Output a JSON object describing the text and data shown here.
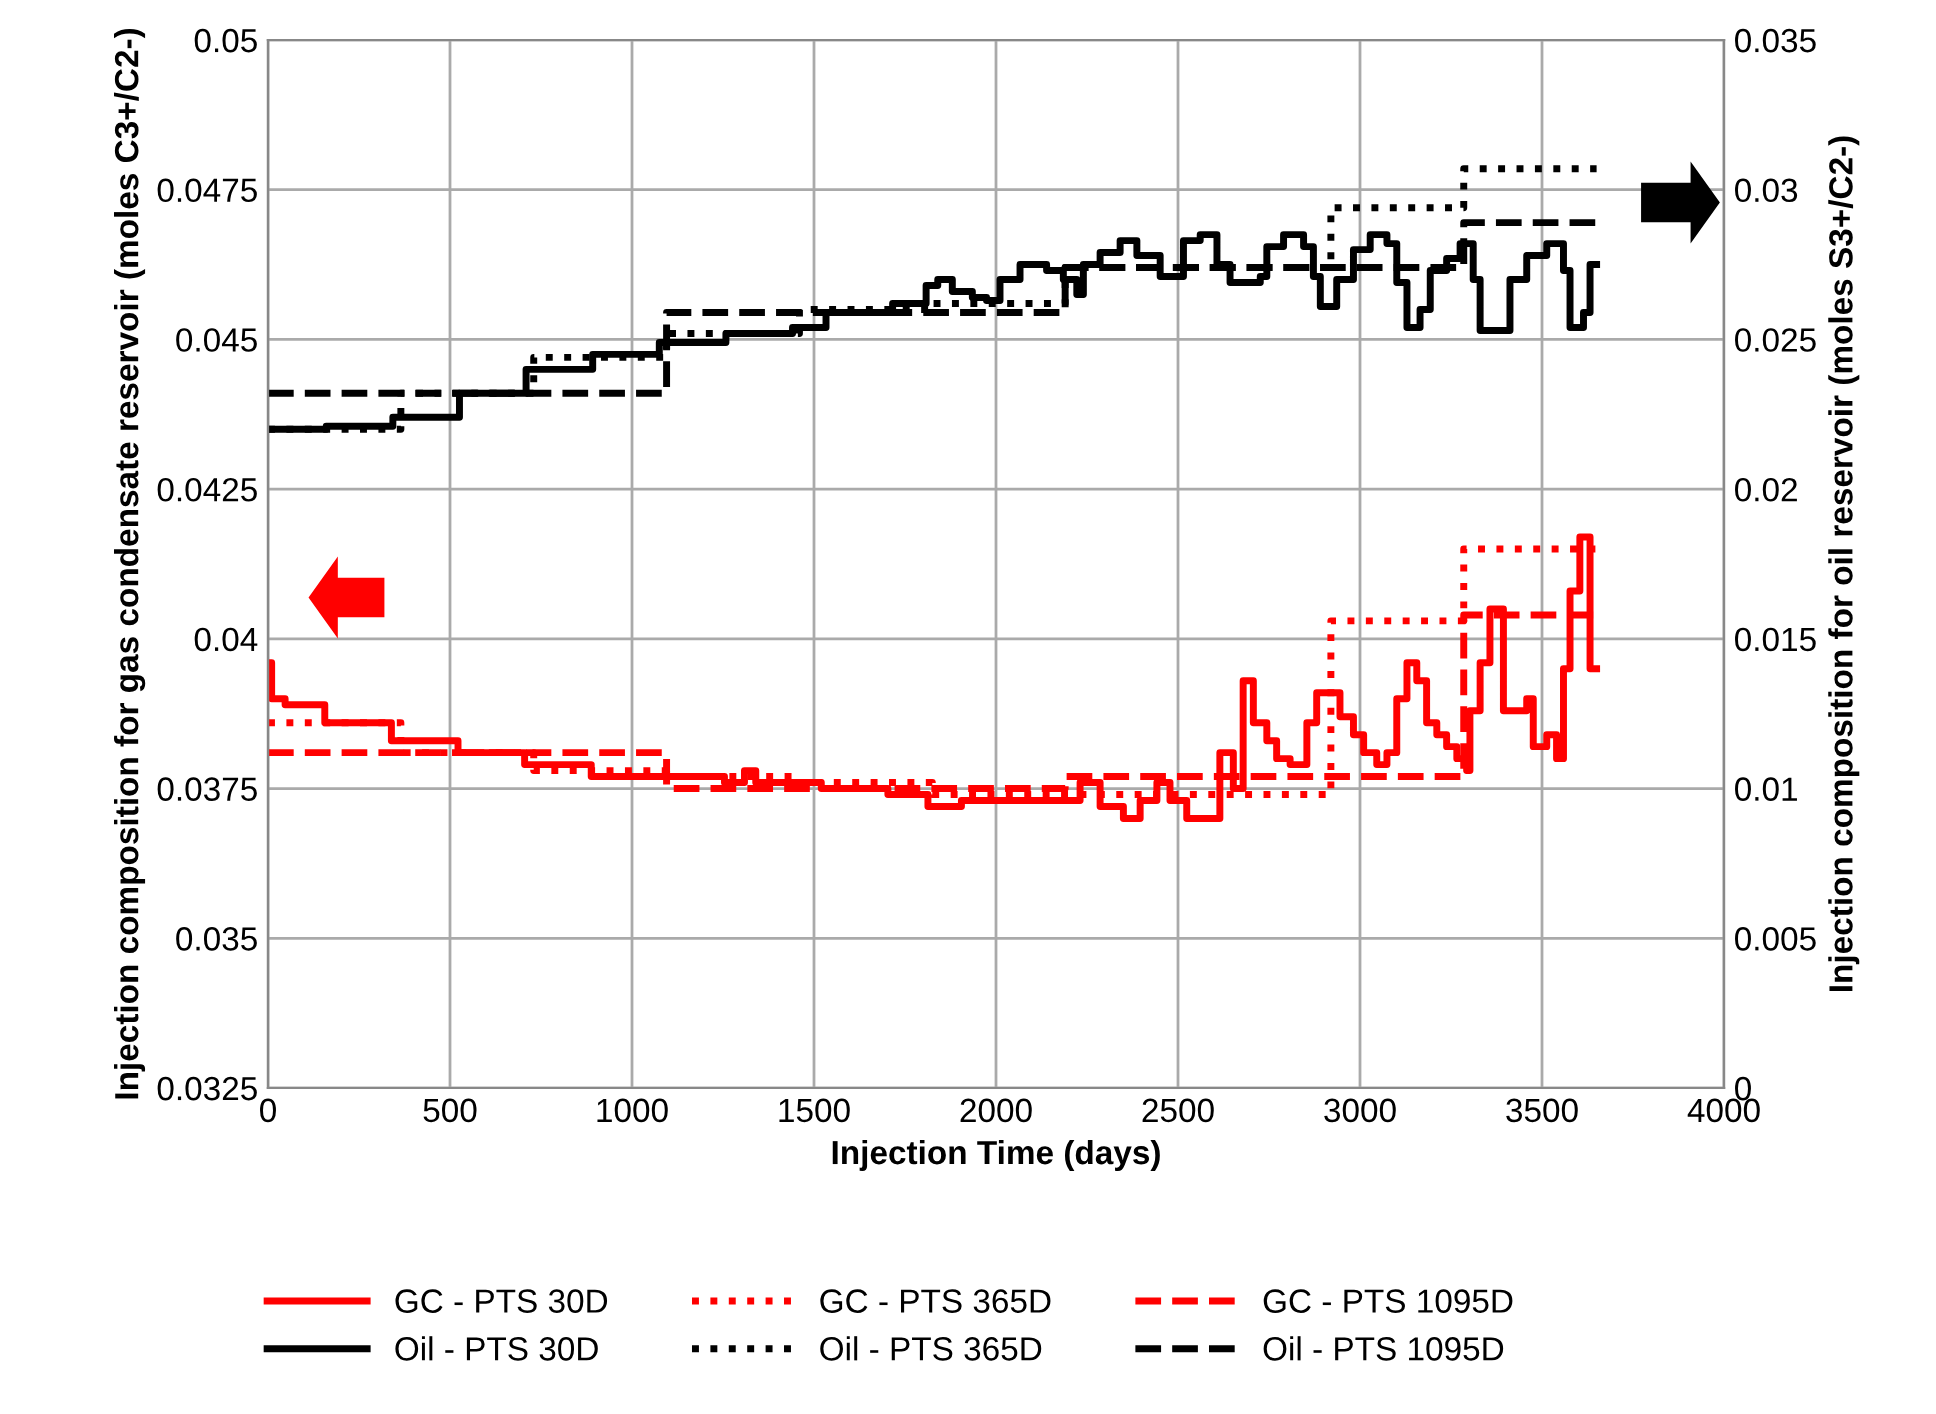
{
  "chart_data": {
    "type": "step",
    "xlabel": "Injection Time (days)",
    "ylabel": "Injection composition for gas condensate reservoir (moles C3+/C2-)",
    "y2label": "Injection composition for oil reservoir (moles S3+/C2-)",
    "xlim": [
      0,
      4000
    ],
    "xticks": [
      0,
      500,
      1000,
      1500,
      2000,
      2500,
      3000,
      3500,
      4000
    ],
    "ylim": [
      0.0325,
      0.05
    ],
    "yticks": [
      0.0325,
      0.035,
      0.0375,
      0.04,
      0.0425,
      0.045,
      0.0475,
      0.05
    ],
    "y2lim": [
      0,
      0.035
    ],
    "y2ticks": [
      0,
      0.005,
      0.01,
      0.015,
      0.02,
      0.025,
      0.03,
      0.035
    ],
    "grid": true,
    "legend": "bottom",
    "series": [
      {
        "name": "GC - PTS 30D",
        "color": "#ff0000",
        "line_style": "solid",
        "x": [
          0,
          10,
          47,
          156,
          339,
          522,
          705,
          888,
          1071,
          1254,
          1309,
          1340,
          1520,
          1703,
          1813,
          1905,
          2011,
          2139,
          2231,
          2286,
          2350,
          2396,
          2442,
          2478,
          2524,
          2579,
          2615,
          2652,
          2679,
          2707,
          2744,
          2771,
          2808,
          2854,
          2881,
          2945,
          2982,
          3010,
          3046,
          3074,
          3101,
          3129,
          3156,
          3183,
          3211,
          3238,
          3266,
          3293,
          3302,
          3330,
          3357,
          3394,
          3458,
          3476,
          3513,
          3540,
          3559,
          3577,
          3604,
          3632,
          3650
        ],
        "values": [
          0.0396,
          0.039,
          0.0389,
          0.0386,
          0.0383,
          0.0381,
          0.0379,
          0.0377,
          0.0377,
          0.0376,
          0.0378,
          0.0376,
          0.0375,
          0.0374,
          0.0372,
          0.0373,
          0.0373,
          0.0373,
          0.0376,
          0.0372,
          0.037,
          0.0373,
          0.0376,
          0.0373,
          0.037,
          0.037,
          0.0381,
          0.0375,
          0.0393,
          0.0386,
          0.0383,
          0.038,
          0.0379,
          0.0386,
          0.0391,
          0.0387,
          0.0384,
          0.0381,
          0.0379,
          0.0381,
          0.039,
          0.0396,
          0.0393,
          0.0386,
          0.0384,
          0.0382,
          0.038,
          0.0378,
          0.0388,
          0.0396,
          0.0405,
          0.0388,
          0.039,
          0.0382,
          0.0384,
          0.038,
          0.0395,
          0.0408,
          0.0417,
          0.0395,
          0.0395
        ]
      },
      {
        "name": "GC - PTS 365D",
        "color": "#ff0000",
        "line_style": "dotted",
        "x": [
          0,
          365,
          730,
          1095,
          1460,
          1825,
          2190,
          2555,
          2920,
          3285,
          3650
        ],
        "values": [
          0.0386,
          0.0381,
          0.0378,
          0.0377,
          0.0376,
          0.0374,
          0.0374,
          0.0374,
          0.0403,
          0.0415,
          0.0415
        ]
      },
      {
        "name": "GC - PTS 1095D",
        "color": "#ff0000",
        "line_style": "dashed",
        "x": [
          0,
          1095,
          2190,
          3285,
          3650
        ],
        "values": [
          0.0381,
          0.0375,
          0.0377,
          0.0404,
          0.0404
        ]
      },
      {
        "name": "Oil - PTS 30D",
        "color": "#000000",
        "line_style": "solid",
        "axis": "y2",
        "x": [
          0,
          160,
          343,
          526,
          709,
          892,
          1075,
          1258,
          1441,
          1533,
          1716,
          1808,
          1840,
          1880,
          1935,
          1974,
          2011,
          2066,
          2139,
          2185,
          2222,
          2240,
          2286,
          2341,
          2387,
          2451,
          2515,
          2561,
          2607,
          2643,
          2726,
          2744,
          2790,
          2845,
          2872,
          2891,
          2936,
          2982,
          3028,
          3074,
          3101,
          3129,
          3165,
          3193,
          3238,
          3275,
          3311,
          3330,
          3394,
          3412,
          3458,
          3513,
          3559,
          3577,
          3614,
          3632,
          3650
        ],
        "values": [
          0.022,
          0.0221,
          0.0224,
          0.0232,
          0.024,
          0.0245,
          0.0249,
          0.0252,
          0.0254,
          0.0259,
          0.0262,
          0.0268,
          0.027,
          0.0266,
          0.0264,
          0.0263,
          0.027,
          0.0275,
          0.0273,
          0.027,
          0.0265,
          0.0275,
          0.0279,
          0.0283,
          0.0278,
          0.0271,
          0.0283,
          0.0285,
          0.0275,
          0.0269,
          0.0271,
          0.0281,
          0.0285,
          0.0281,
          0.0271,
          0.0261,
          0.027,
          0.028,
          0.0285,
          0.0282,
          0.0269,
          0.0254,
          0.026,
          0.0273,
          0.0277,
          0.0282,
          0.027,
          0.0253,
          0.0253,
          0.027,
          0.0278,
          0.0282,
          0.0273,
          0.0254,
          0.0259,
          0.0275,
          0.0275
        ]
      },
      {
        "name": "Oil - PTS 365D",
        "color": "#000000",
        "line_style": "dotted",
        "axis": "y2",
        "x": [
          0,
          365,
          730,
          1095,
          1460,
          1825,
          2190,
          2555,
          2920,
          3285,
          3650
        ],
        "values": [
          0.022,
          0.0232,
          0.0244,
          0.0252,
          0.026,
          0.0262,
          0.0274,
          0.0274,
          0.0294,
          0.0307,
          0.0307
        ]
      },
      {
        "name": "Oil - PTS 1095D",
        "color": "#000000",
        "line_style": "dashed",
        "axis": "y2",
        "x": [
          0,
          1095,
          2190,
          3285,
          3650
        ],
        "values": [
          0.0232,
          0.0259,
          0.0274,
          0.0289,
          0.0289
        ]
      }
    ]
  }
}
